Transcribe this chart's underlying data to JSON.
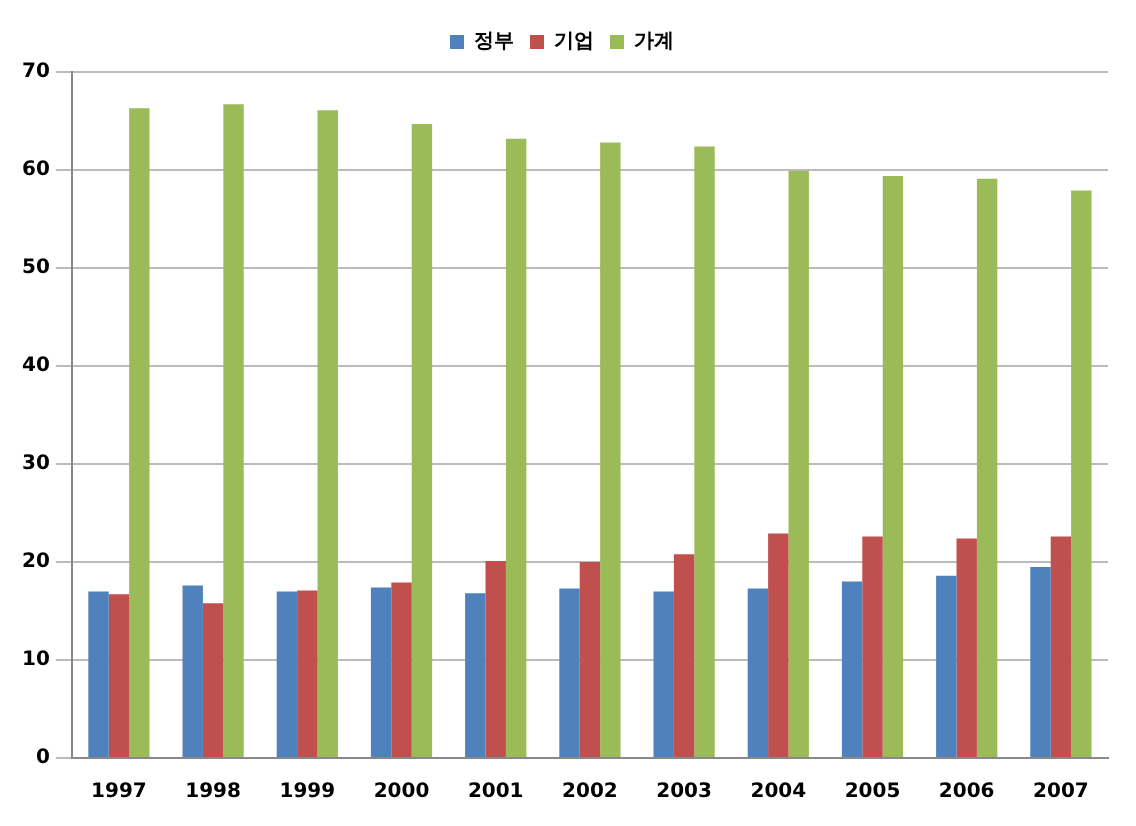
{
  "chart_data": {
    "type": "bar",
    "categories": [
      "1997",
      "1998",
      "1999",
      "2000",
      "2001",
      "2002",
      "2003",
      "2004",
      "2005",
      "2006",
      "2007"
    ],
    "series": [
      {
        "name": "정부",
        "color": "#4f81bd",
        "values": [
          17.0,
          17.6,
          17.0,
          17.4,
          16.8,
          17.3,
          17.0,
          17.3,
          18.0,
          18.6,
          19.5
        ]
      },
      {
        "name": "기업",
        "color": "#c0504d",
        "values": [
          16.7,
          15.8,
          17.1,
          17.9,
          20.1,
          20.0,
          20.8,
          22.9,
          22.6,
          22.4,
          22.6
        ]
      },
      {
        "name": "가계",
        "color": "#9bbb59",
        "values": [
          66.3,
          66.7,
          66.1,
          64.7,
          63.2,
          62.8,
          62.4,
          59.9,
          59.4,
          59.1,
          57.9
        ]
      }
    ],
    "ylim": [
      0,
      70
    ],
    "yticks": [
      0,
      10,
      20,
      30,
      40,
      50,
      60,
      70
    ],
    "grid": "y",
    "legend": "top"
  }
}
